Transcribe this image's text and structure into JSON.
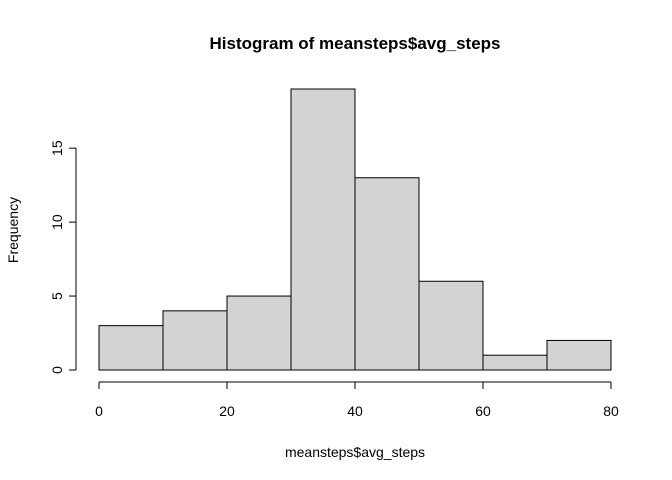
{
  "chart_data": {
    "type": "bar",
    "title": "Histogram of meansteps$avg_steps",
    "xlabel": "meansteps$avg_steps",
    "ylabel": "Frequency",
    "bins": [
      {
        "from": 0,
        "to": 10,
        "count": 3
      },
      {
        "from": 10,
        "to": 20,
        "count": 4
      },
      {
        "from": 20,
        "to": 30,
        "count": 5
      },
      {
        "from": 30,
        "to": 40,
        "count": 19
      },
      {
        "from": 40,
        "to": 50,
        "count": 13
      },
      {
        "from": 50,
        "to": 60,
        "count": 6
      },
      {
        "from": 60,
        "to": 70,
        "count": 1
      },
      {
        "from": 70,
        "to": 80,
        "count": 2
      }
    ],
    "xlim": [
      0,
      80
    ],
    "ylim": [
      0,
      19
    ],
    "x_ticks": [
      0,
      20,
      40,
      60,
      80
    ],
    "y_ticks": [
      0,
      5,
      10,
      15
    ],
    "grid": false,
    "bar_fill": "#d3d3d3",
    "bar_stroke": "#000000"
  }
}
